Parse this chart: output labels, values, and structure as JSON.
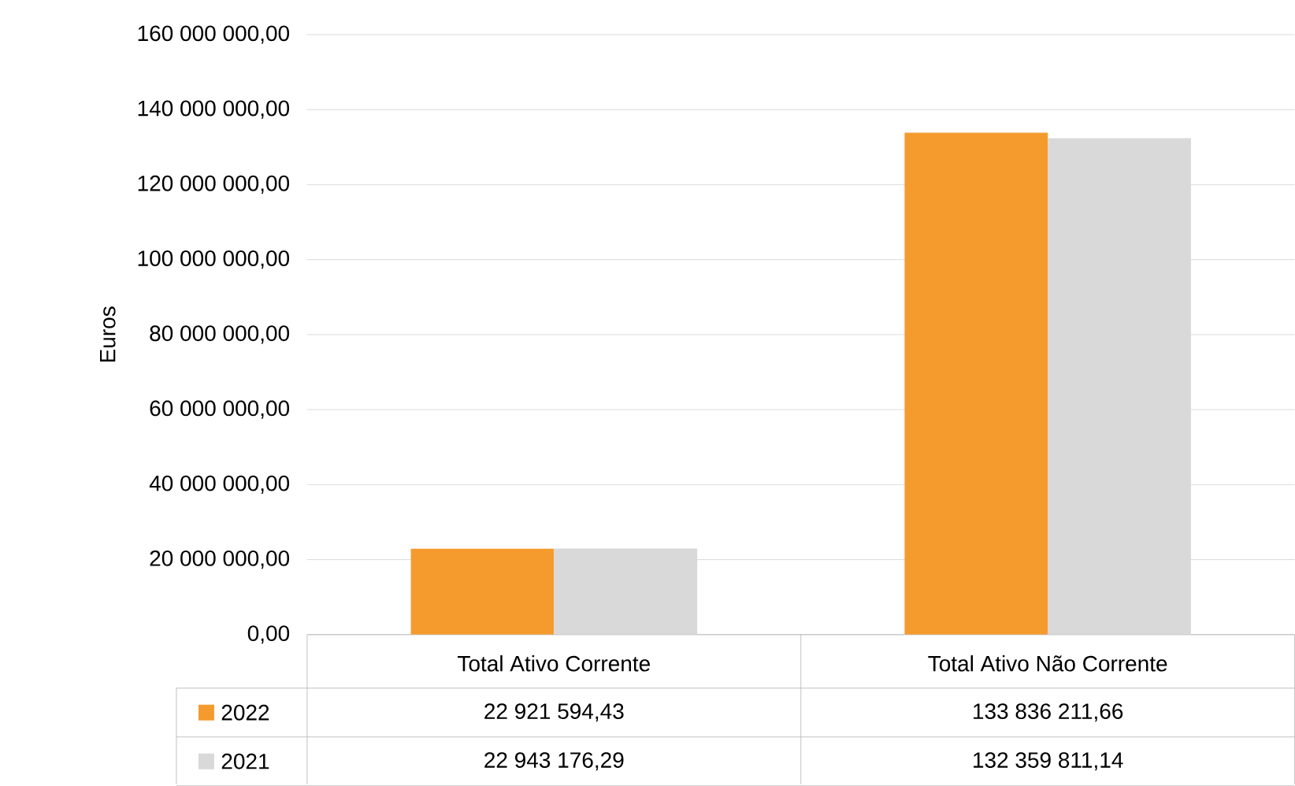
{
  "chart_data": {
    "type": "bar",
    "ylabel": "Euros",
    "categories": [
      "Total Ativo Corrente",
      "Total Ativo Não Corrente"
    ],
    "series": [
      {
        "name": "2022",
        "color": "#f59b2e",
        "values": [
          22921594.43,
          133836211.66
        ],
        "value_labels": [
          "22 921 594,43",
          "133 836 211,66"
        ]
      },
      {
        "name": "2021",
        "color": "#d9d9d9",
        "values": [
          22943176.29,
          132359811.14
        ],
        "value_labels": [
          "22 943 176,29",
          "132 359 811,14"
        ]
      }
    ],
    "ylim": [
      0,
      160000000
    ],
    "yticks": [
      {
        "value": 0,
        "label": "0,00"
      },
      {
        "value": 20000000,
        "label": "20 000 000,00"
      },
      {
        "value": 40000000,
        "label": "40 000 000,00"
      },
      {
        "value": 60000000,
        "label": "60 000 000,00"
      },
      {
        "value": 80000000,
        "label": "80 000 000,00"
      },
      {
        "value": 100000000,
        "label": "100 000 000,00"
      },
      {
        "value": 120000000,
        "label": "120 000 000,00"
      },
      {
        "value": 140000000,
        "label": "140 000 000,00"
      },
      {
        "value": 160000000,
        "label": "160 000 000,00"
      }
    ],
    "grid": "y",
    "legend": "bottom"
  }
}
